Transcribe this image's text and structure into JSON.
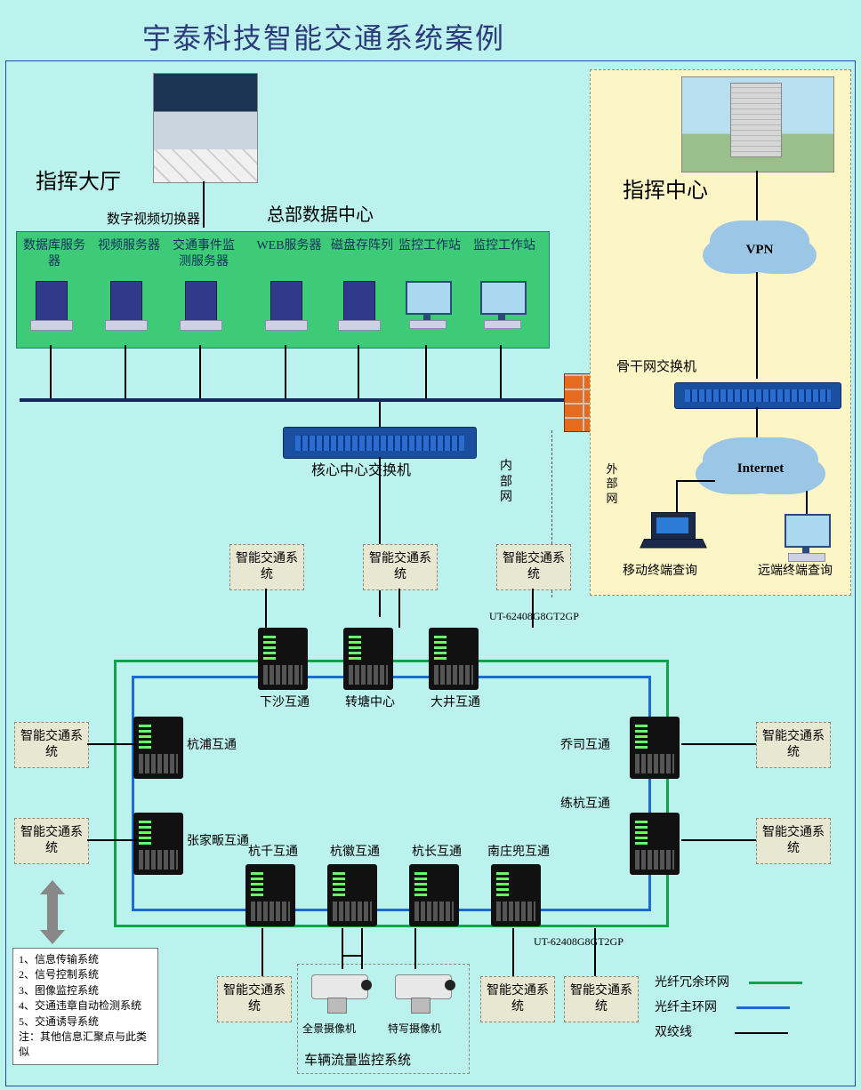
{
  "title": {
    "text": "宇泰科技智能交通系统案例",
    "fontsize": 32,
    "color": "#2b3a7a"
  },
  "colors": {
    "page_bg": "#bcf2ed",
    "green_panel": "#3ecb78",
    "yellow_panel": "#fcf6c7",
    "dash_box_bg": "#e8e7d2",
    "dash_border": "#8a8a78",
    "switch_blue": "#1a4fa0",
    "firewall": "#e76b1e",
    "cloud": "#9cc6e6",
    "ring_green": "#12a24a",
    "ring_blue": "#1c6bd0",
    "line_black": "#000000",
    "text_dark": "#222222"
  },
  "sections": {
    "command_hall": "指挥大厅",
    "hq_data_center": "总部数据中心",
    "command_center": "指挥中心",
    "digital_video_switch": "数字视频切换器",
    "core_switch": "核心中心交换机",
    "backbone_switch": "骨干网交换机",
    "intranet": "内部网",
    "extranet": "外部网",
    "vpn": "VPN",
    "internet": "Internet",
    "mobile_query": "移动终端查询",
    "remote_query": "远端终端查询"
  },
  "hq_servers": [
    "数据库服务器",
    "视频服务器",
    "交通事件监测服务器",
    "WEB服务器",
    "磁盘存阵列",
    "监控工作站",
    "监控工作站"
  ],
  "its_box": "智能交通系统",
  "ring_nodes_top": [
    "下沙互通",
    "转塘中心",
    "大井互通"
  ],
  "ring_nodes_left": [
    "杭浦互通",
    "张家畈互通"
  ],
  "ring_nodes_right": [
    "乔司互通",
    "练杭互通"
  ],
  "ring_nodes_bottom": [
    "杭千互通",
    "杭徽互通",
    "杭长互通",
    "南庄兜互通"
  ],
  "device_model": "UT-62408G8GT2GP",
  "cameras": {
    "panoramic": "全景摄像机",
    "closeup": "特写摄像机",
    "system_title": "车辆流量监控系统"
  },
  "legend": {
    "redundant_ring": "光纤冗余环网",
    "main_ring": "光纤主环网",
    "twisted_pair": "双绞线"
  },
  "systems_list": [
    "1、信息传输系统",
    "2、信号控制系统",
    "3、图像监控系统",
    "4、交通违章自动检测系统",
    "5、交通诱导系统",
    "注：其他信息汇聚点与此类似"
  ]
}
